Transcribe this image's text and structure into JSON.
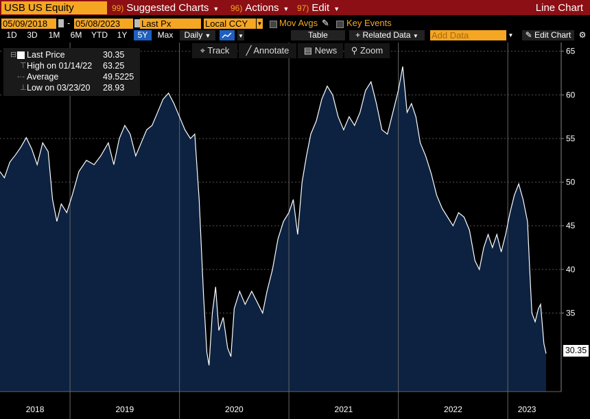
{
  "header": {
    "ticker": "USB US Equity",
    "menu": [
      {
        "num": "99)",
        "label": "Suggested Charts"
      },
      {
        "num": "96)",
        "label": "Actions"
      },
      {
        "num": "97)",
        "label": "Edit"
      }
    ],
    "chart_type": "Line Chart"
  },
  "controls": {
    "start_date": "05/09/2018",
    "end_date": "05/08/2023",
    "price_field": "Last Px",
    "currency": "Local CCY",
    "mov_avgs": "Mov Avgs",
    "key_events": "Key Events",
    "ranges": [
      "1D",
      "3D",
      "1M",
      "6M",
      "YTD",
      "1Y",
      "5Y",
      "Max"
    ],
    "active_range": "5Y",
    "frequency": "Daily",
    "table_label": "Table",
    "related_data": "+ Related Data",
    "add_data_placeholder": "Add Data",
    "edit_chart": "Edit Chart"
  },
  "toolbar": {
    "track": "Track",
    "annotate": "Annotate",
    "news": "News",
    "zoom": "Zoom"
  },
  "legend": {
    "last_price_label": "Last Price",
    "last_price": "30.35",
    "high_label": "High on 01/14/22",
    "high": "63.25",
    "avg_label": "Average",
    "avg": "49.5225",
    "low_label": "Low on 03/23/20",
    "low": "28.93"
  },
  "last_tag": "30.35",
  "colors": {
    "line": "#ffffff",
    "fill": "#0d2240",
    "accent": "#f5a623",
    "header": "#8b0f14",
    "grid": "#555555"
  },
  "chart_data": {
    "type": "area",
    "title": "",
    "xlabel": "",
    "ylabel": "",
    "ylim": [
      26,
      66
    ],
    "yticks": [
      35,
      40,
      45,
      50,
      55,
      60,
      65
    ],
    "grid": true,
    "x_labels": [
      "2018",
      "2019",
      "2020",
      "2021",
      "2022",
      "2023"
    ],
    "x_dividers": [
      2019,
      2020,
      2021,
      2022,
      2023
    ],
    "x_start": 2018.36,
    "x_end": 2023.35,
    "series": [
      {
        "points": [
          [
            2018.36,
            51.2
          ],
          [
            2018.4,
            50.5
          ],
          [
            2018.45,
            52.3
          ],
          [
            2018.5,
            53.1
          ],
          [
            2018.55,
            54.0
          ],
          [
            2018.6,
            55.1
          ],
          [
            2018.65,
            53.8
          ],
          [
            2018.7,
            52.0
          ],
          [
            2018.75,
            54.5
          ],
          [
            2018.8,
            53.5
          ],
          [
            2018.84,
            48.0
          ],
          [
            2018.88,
            45.5
          ],
          [
            2018.92,
            47.5
          ],
          [
            2018.97,
            46.5
          ],
          [
            2019.02,
            48.5
          ],
          [
            2019.08,
            51.2
          ],
          [
            2019.15,
            52.5
          ],
          [
            2019.22,
            52.0
          ],
          [
            2019.28,
            53.0
          ],
          [
            2019.35,
            54.5
          ],
          [
            2019.4,
            52.0
          ],
          [
            2019.45,
            55.0
          ],
          [
            2019.5,
            56.5
          ],
          [
            2019.55,
            55.5
          ],
          [
            2019.6,
            53.0
          ],
          [
            2019.65,
            54.5
          ],
          [
            2019.7,
            56.0
          ],
          [
            2019.75,
            56.5
          ],
          [
            2019.8,
            58.0
          ],
          [
            2019.85,
            59.5
          ],
          [
            2019.9,
            60.2
          ],
          [
            2019.95,
            59.0
          ],
          [
            2020.0,
            57.5
          ],
          [
            2020.05,
            56.0
          ],
          [
            2020.1,
            55.0
          ],
          [
            2020.14,
            55.5
          ],
          [
            2020.18,
            48.0
          ],
          [
            2020.22,
            37.0
          ],
          [
            2020.25,
            30.5
          ],
          [
            2020.27,
            29.0
          ],
          [
            2020.3,
            35.0
          ],
          [
            2020.33,
            38.0
          ],
          [
            2020.36,
            33.0
          ],
          [
            2020.4,
            34.5
          ],
          [
            2020.44,
            31.0
          ],
          [
            2020.47,
            30.0
          ],
          [
            2020.5,
            35.5
          ],
          [
            2020.55,
            37.5
          ],
          [
            2020.6,
            36.0
          ],
          [
            2020.66,
            37.5
          ],
          [
            2020.72,
            36.0
          ],
          [
            2020.76,
            35.0
          ],
          [
            2020.8,
            37.5
          ],
          [
            2020.85,
            40.0
          ],
          [
            2020.9,
            43.5
          ],
          [
            2020.95,
            45.5
          ],
          [
            2021.0,
            46.5
          ],
          [
            2021.04,
            48.0
          ],
          [
            2021.08,
            44.0
          ],
          [
            2021.12,
            50.0
          ],
          [
            2021.16,
            53.0
          ],
          [
            2021.2,
            55.5
          ],
          [
            2021.25,
            57.0
          ],
          [
            2021.3,
            59.5
          ],
          [
            2021.35,
            61.0
          ],
          [
            2021.4,
            60.0
          ],
          [
            2021.45,
            57.5
          ],
          [
            2021.5,
            56.0
          ],
          [
            2021.55,
            57.5
          ],
          [
            2021.6,
            56.5
          ],
          [
            2021.65,
            58.0
          ],
          [
            2021.7,
            60.5
          ],
          [
            2021.75,
            61.5
          ],
          [
            2021.8,
            59.0
          ],
          [
            2021.85,
            56.0
          ],
          [
            2021.9,
            55.5
          ],
          [
            2021.95,
            58.0
          ],
          [
            2022.0,
            60.5
          ],
          [
            2022.04,
            63.25
          ],
          [
            2022.08,
            58.0
          ],
          [
            2022.12,
            59.0
          ],
          [
            2022.16,
            57.5
          ],
          [
            2022.2,
            54.5
          ],
          [
            2022.25,
            53.0
          ],
          [
            2022.3,
            51.0
          ],
          [
            2022.35,
            48.5
          ],
          [
            2022.4,
            47.0
          ],
          [
            2022.45,
            46.0
          ],
          [
            2022.5,
            45.0
          ],
          [
            2022.55,
            46.5
          ],
          [
            2022.6,
            46.0
          ],
          [
            2022.65,
            44.5
          ],
          [
            2022.7,
            41.0
          ],
          [
            2022.74,
            40.0
          ],
          [
            2022.78,
            42.5
          ],
          [
            2022.82,
            44.0
          ],
          [
            2022.86,
            42.5
          ],
          [
            2022.9,
            44.0
          ],
          [
            2022.94,
            42.0
          ],
          [
            2022.98,
            44.0
          ],
          [
            2023.02,
            46.5
          ],
          [
            2023.06,
            48.5
          ],
          [
            2023.1,
            49.8
          ],
          [
            2023.14,
            48.0
          ],
          [
            2023.18,
            45.5
          ],
          [
            2023.2,
            40.0
          ],
          [
            2023.22,
            35.0
          ],
          [
            2023.25,
            34.0
          ],
          [
            2023.28,
            35.5
          ],
          [
            2023.3,
            36.0
          ],
          [
            2023.33,
            31.5
          ],
          [
            2023.35,
            30.35
          ]
        ]
      }
    ]
  }
}
